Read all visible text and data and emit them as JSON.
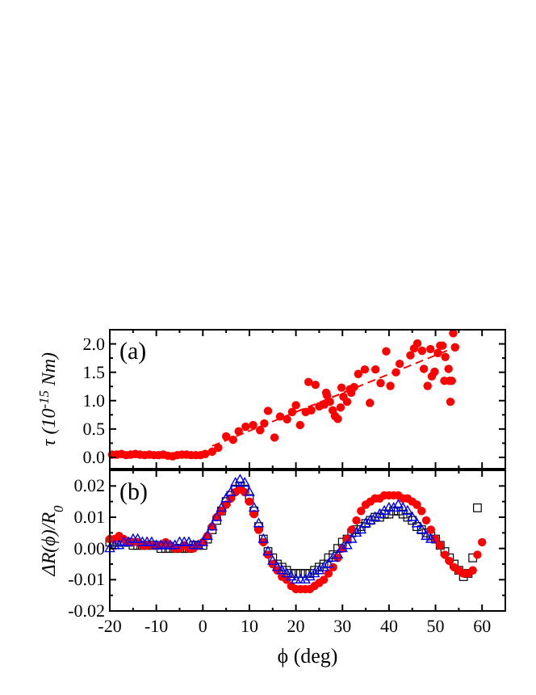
{
  "chart_data": [
    {
      "type": "scatter",
      "ylabel": "τ (10$^{-15}$ Nm)",
      "annotations": [
        "(a)"
      ],
      "xlim": [
        -20,
        65
      ],
      "xticks": [
        -20,
        -10,
        0,
        10,
        20,
        30,
        40,
        50,
        60
      ],
      "ylim": [
        -0.2,
        2.25
      ],
      "yticks": [
        {
          "value": 0,
          "label": "0.0"
        },
        {
          "value": 0.5,
          "label": "0.5"
        },
        {
          "value": 1,
          "label": "1.0"
        },
        {
          "value": 1.5,
          "label": "1.5"
        },
        {
          "value": 2,
          "label": "2.0"
        }
      ],
      "tick_labels": "y",
      "marker": "circle",
      "series": [
        {
          "color": "#ff0000",
          "x": [
            -19.5,
            -18.5,
            -17.5,
            -16.5,
            -15.5,
            -14.5,
            -13.5,
            -12.5,
            -11.5,
            -10.5,
            -9.5,
            -8.5,
            -7.5,
            -6.5,
            -5.5,
            -4.5,
            -3.5,
            -2.5,
            -1.5,
            -0.5,
            0.5,
            2,
            3.3,
            5,
            6.5,
            7.7,
            9.2,
            10.8,
            12.3,
            13.2,
            14,
            15.4,
            16.6,
            18.1,
            19.2,
            20,
            20.9,
            22.1,
            22.7,
            23.3,
            24.2,
            25,
            26.1,
            26.5,
            26.7,
            27.3,
            27.9,
            28.4,
            29,
            29.6,
            29.8,
            30.2,
            31,
            31.6,
            31.9,
            32.5,
            33.4,
            34.8,
            35.9,
            37.1,
            38.2,
            39.4,
            40.3,
            41.5,
            42.3,
            44.6,
            45.4,
            46.1,
            47.1,
            47.5,
            48.3,
            48.9,
            49.2,
            49.8,
            50.5,
            51,
            51.5,
            51.9,
            52.1,
            52.8,
            53,
            53.2,
            53.5,
            53.8,
            54.2
          ],
          "values": [
            0.05,
            0.05,
            0.06,
            0.04,
            0.05,
            0.06,
            0.05,
            0.04,
            0.05,
            0.04,
            0.04,
            0.05,
            0.03,
            0.02,
            0.04,
            0.05,
            0.05,
            0.04,
            0.04,
            0.04,
            0.06,
            0.1,
            0.17,
            0.37,
            0.31,
            0.46,
            0.54,
            0.57,
            0.48,
            0.6,
            0.82,
            0.35,
            0.72,
            0.67,
            0.8,
            0.92,
            0.57,
            0.8,
            1.33,
            0.83,
            1.28,
            0.9,
            0.93,
            1.14,
            1.09,
            0.98,
            0.83,
            0.73,
            0.68,
            0.88,
            1.23,
            1.07,
            0.98,
            1.2,
            1.14,
            1.24,
            1.47,
            1.55,
            0.96,
            1.55,
            1.31,
            1.87,
            1.26,
            1.5,
            1.65,
            1.8,
            1.92,
            2.01,
            1.88,
            1.56,
            1.26,
            1.91,
            1.43,
            1.51,
            1.84,
            1.97,
            1.97,
            1.35,
            1.77,
            1.56,
            1.35,
            0.98,
            1.35,
            2.19,
            1.94
          ]
        },
        {
          "type": "line",
          "color": "#ff0000",
          "line_style": "dashed",
          "marker": "none",
          "x": [
            2,
            56
          ],
          "values": [
            0.2,
            2.0
          ]
        }
      ]
    },
    {
      "type": "scatter",
      "xlabel": "ϕ (deg)",
      "ylabel": "ΔR(ϕ)/R$_{0}$",
      "annotations": [
        "(b)"
      ],
      "xlim": [
        -20,
        65
      ],
      "xticks": [
        -20,
        -10,
        0,
        10,
        20,
        30,
        40,
        50,
        60
      ],
      "ylim": [
        -0.02,
        0.025
      ],
      "yticks": [
        {
          "value": -0.02,
          "label": "-0.02"
        },
        {
          "value": -0.01,
          "label": "-0.01"
        },
        {
          "value": 0,
          "label": "0.00"
        },
        {
          "value": 0.01,
          "label": "0.01"
        },
        {
          "value": 0.02,
          "label": "0.02"
        }
      ],
      "series": [
        {
          "color": "#000000",
          "marker": "square",
          "x": [
            -20,
            -19,
            -18,
            -17,
            -16,
            -15,
            -14,
            -13,
            -12,
            -11,
            -10,
            -9,
            -8,
            -7,
            -6,
            -5,
            -4,
            -3,
            -2,
            -1,
            0,
            1,
            2,
            3,
            4,
            5,
            6,
            7,
            8,
            9,
            10,
            11,
            12,
            13,
            14,
            15,
            16,
            17,
            18,
            19,
            20,
            21,
            22,
            23,
            24,
            25,
            26,
            27,
            28,
            29,
            30,
            31,
            32,
            33,
            34,
            35,
            36,
            37,
            38,
            39,
            40,
            41,
            42,
            43,
            44,
            45,
            46,
            47,
            48,
            49,
            50,
            51,
            52,
            53,
            54,
            55,
            56,
            57,
            58,
            59
          ],
          "values": [
            0.002,
            0.002,
            0.002,
            0.002,
            0.002,
            0.001,
            0.001,
            0.001,
            0.001,
            0.001,
            0.001,
            0,
            0,
            0,
            0,
            0,
            0,
            0,
            0.001,
            0.001,
            0.001,
            0.003,
            0.006,
            0.009,
            0.012,
            0.015,
            0.017,
            0.019,
            0.02,
            0.019,
            0.016,
            0.012,
            0.007,
            0.003,
            -0.001,
            -0.003,
            -0.005,
            -0.006,
            -0.007,
            -0.008,
            -0.008,
            -0.008,
            -0.008,
            -0.008,
            -0.007,
            -0.006,
            -0.005,
            -0.003,
            -0.002,
            0,
            0.002,
            0.003,
            0.005,
            0.006,
            0.007,
            0.008,
            0.009,
            0.01,
            0.01,
            0.011,
            0.011,
            0.012,
            0.012,
            0.011,
            0.01,
            0.009,
            0.007,
            0.006,
            0.005,
            0.004,
            0.003,
            0.001,
            -0.001,
            -0.003,
            -0.005,
            -0.007,
            -0.009,
            -0.008,
            -0.003,
            0.013
          ]
        },
        {
          "color": "#ff0000",
          "marker": "circle",
          "x": [
            -20,
            -19,
            -18,
            -17,
            -16,
            -15,
            -14,
            -13,
            -12,
            -11,
            -10,
            -9,
            -8,
            -7,
            -6,
            -5,
            -4,
            -3,
            -2,
            -1,
            0,
            1,
            2,
            3,
            4,
            5,
            6,
            7,
            8,
            9,
            10,
            11,
            12,
            13,
            14,
            15,
            16,
            17,
            18,
            19,
            20,
            21,
            22,
            23,
            24,
            25,
            26,
            27,
            28,
            29,
            30,
            31,
            32,
            33,
            34,
            35,
            36,
            37,
            38,
            39,
            40,
            41,
            42,
            43,
            44,
            45,
            46,
            47,
            48,
            49,
            50,
            51,
            52,
            53,
            54,
            55,
            56,
            57,
            58,
            59,
            60
          ],
          "values": [
            0.003,
            0.003,
            0.004,
            0.003,
            0.002,
            0.002,
            0.002,
            0.001,
            0.001,
            0.001,
            0.001,
            0.001,
            0.002,
            0.001,
            0,
            0,
            0.001,
            0,
            0,
            0.001,
            0.002,
            0.004,
            0.007,
            0.01,
            0.012,
            0.014,
            0.016,
            0.018,
            0.019,
            0.018,
            0.015,
            0.011,
            0.006,
            0.002,
            -0.002,
            -0.005,
            -0.007,
            -0.009,
            -0.01,
            -0.012,
            -0.013,
            -0.013,
            -0.013,
            -0.013,
            -0.012,
            -0.011,
            -0.01,
            -0.008,
            -0.006,
            -0.003,
            0,
            0.003,
            0.006,
            0.009,
            0.012,
            0.014,
            0.015,
            0.016,
            0.016,
            0.017,
            0.017,
            0.017,
            0.017,
            0.016,
            0.016,
            0.015,
            0.014,
            0.012,
            0.009,
            0.006,
            0.003,
            0.001,
            -0.002,
            -0.004,
            -0.006,
            -0.007,
            -0.008,
            -0.008,
            -0.007,
            -0.002,
            0.002
          ]
        },
        {
          "color": "#0000ff",
          "marker": "triangle",
          "x": [
            -20,
            -19,
            -18,
            -17,
            -16,
            -15,
            -14,
            -13,
            -12,
            -11,
            -10,
            -9,
            -8,
            -7,
            -6,
            -5,
            -4,
            -3,
            -2,
            -1,
            0,
            1,
            2,
            3,
            4,
            5,
            6,
            7,
            8,
            9,
            10,
            11,
            12,
            13,
            14,
            15,
            16,
            17,
            18,
            19,
            20,
            21,
            22,
            23,
            24,
            25,
            26,
            27,
            28,
            29,
            30,
            31,
            32,
            33,
            34,
            35,
            36,
            37,
            38,
            39,
            40,
            41,
            42,
            43,
            44,
            45,
            46,
            47,
            48,
            49
          ],
          "values": [
            0,
            0.001,
            0.001,
            0.002,
            0.002,
            0.003,
            0.003,
            0.002,
            0.002,
            0.002,
            0.001,
            0.001,
            0.001,
            0.001,
            0.001,
            0.002,
            0.002,
            0.002,
            0.001,
            0.001,
            0.002,
            0.004,
            0.007,
            0.01,
            0.013,
            0.016,
            0.018,
            0.021,
            0.022,
            0.021,
            0.018,
            0.013,
            0.008,
            0.003,
            -0.001,
            -0.004,
            -0.006,
            -0.007,
            -0.008,
            -0.009,
            -0.01,
            -0.01,
            -0.01,
            -0.009,
            -0.008,
            -0.007,
            -0.006,
            -0.005,
            -0.003,
            -0.002,
            0,
            0.001,
            0.003,
            0.005,
            0.006,
            0.008,
            0.009,
            0.01,
            0.011,
            0.012,
            0.013,
            0.013,
            0.014,
            0.013,
            0.012,
            0.01,
            0.008,
            0.006,
            0.004,
            0.003
          ]
        }
      ]
    }
  ]
}
